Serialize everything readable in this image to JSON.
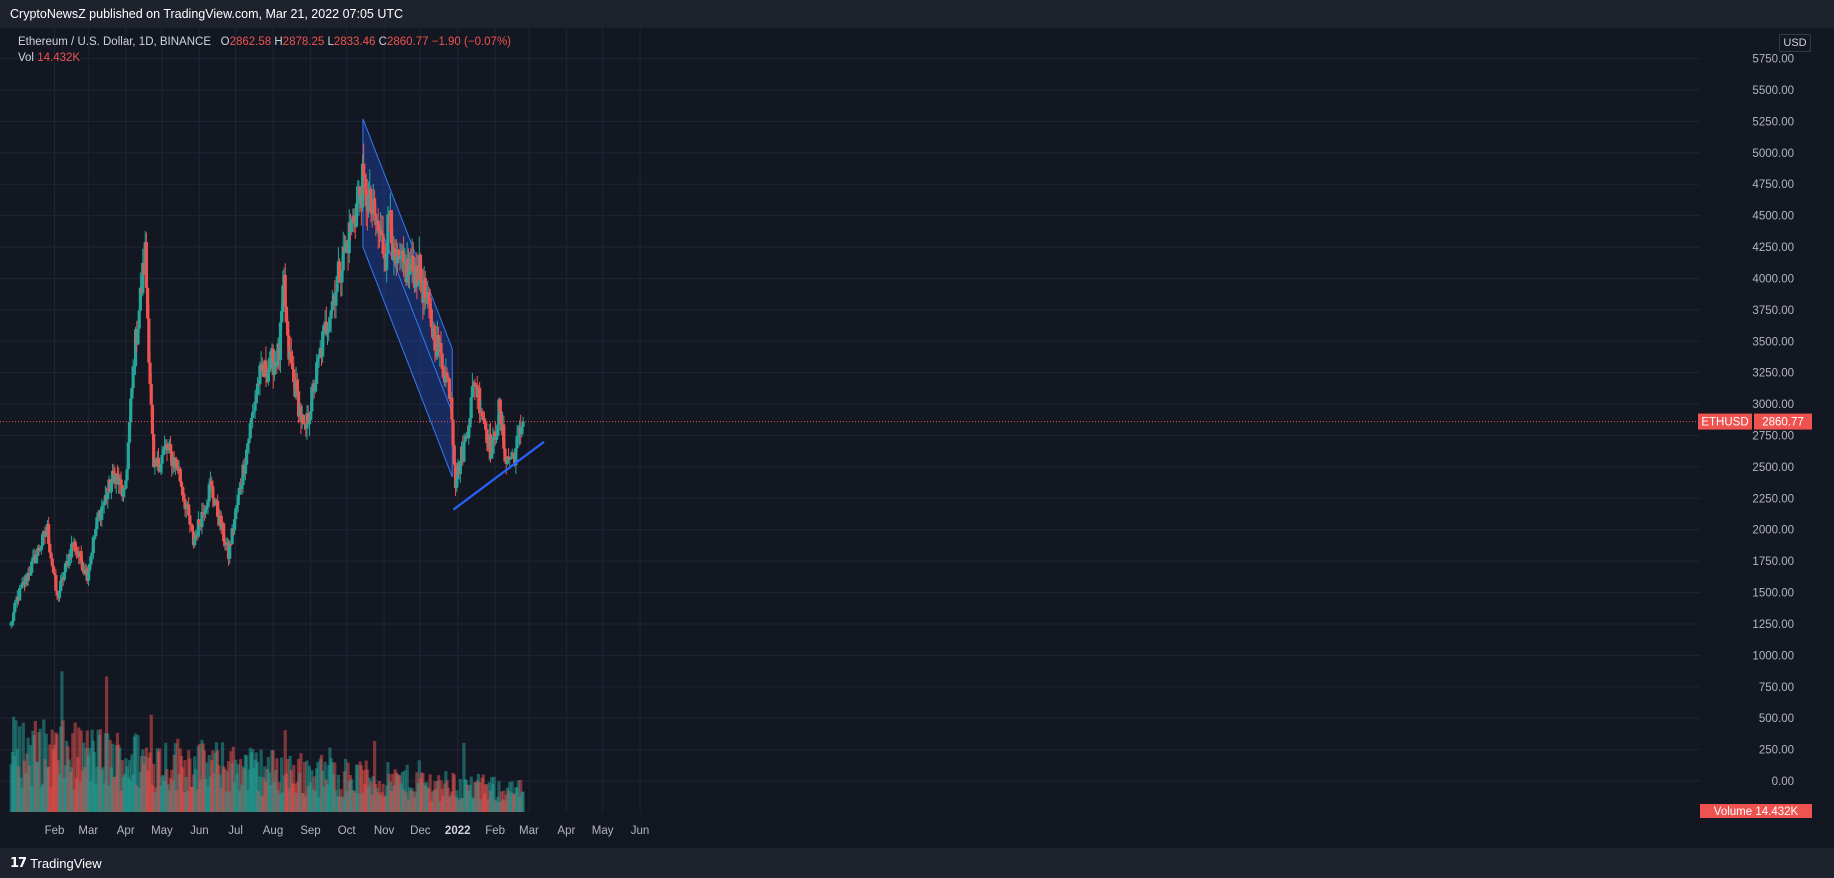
{
  "header": {
    "published": "CryptoNewsZ published on TradingView.com, Mar 21, 2022 07:05 UTC"
  },
  "legend": {
    "symbol": "Ethereum / U.S. Dollar, 1D, BINANCE",
    "o_label": "O",
    "o_value": "2862.58",
    "h_label": "H",
    "h_value": "2878.25",
    "l_label": "L",
    "l_value": "2833.46",
    "c_label": "C",
    "c_value": "2860.77",
    "change": "−1.90 (−0.07%)",
    "vol_label": "Vol",
    "vol_value": "14.432K"
  },
  "price_axis": {
    "currency": "USD",
    "ticks": [
      "5750.00",
      "5500.00",
      "5250.00",
      "5000.00",
      "4750.00",
      "4500.00",
      "4250.00",
      "4000.00",
      "3750.00",
      "3500.00",
      "3250.00",
      "3000.00",
      "2750.00",
      "2500.00",
      "2250.00",
      "2000.00",
      "1750.00",
      "1500.00",
      "1250.00",
      "1000.00",
      "750.00",
      "500.00",
      "250.00",
      "0.00"
    ],
    "last_symbol": "ETHUSD",
    "last_price": "2860.77",
    "volume_label": "Volume",
    "volume_value": "14.432K"
  },
  "time_axis": {
    "labels": [
      "Feb",
      "Mar",
      "Apr",
      "May",
      "Jun",
      "Jul",
      "Aug",
      "Sep",
      "Oct",
      "Nov",
      "Dec",
      "2022",
      "Feb",
      "Mar",
      "Apr",
      "May",
      "Jun"
    ]
  },
  "footer": {
    "logo_text": "TradingView",
    "logo_mark": "17"
  },
  "colors": {
    "background": "#131722",
    "up": "#26a69a",
    "down": "#ef5350",
    "grid": "#1f2433",
    "channel_fill": "#2962ff",
    "channel_line": "#3179f5",
    "trend_line": "#2962ff"
  },
  "chart_data": {
    "type": "candlestick",
    "series_name": "ETHUSD",
    "x_range": [
      "2021-01-20",
      "2022-06-01"
    ],
    "ylim": [
      0,
      5750
    ],
    "grid": true,
    "anchors": [
      {
        "x": "2021-01-21",
        "y": 1250
      },
      {
        "x": "2021-01-26",
        "y": 1450
      },
      {
        "x": "2021-02-10",
        "y": 1780
      },
      {
        "x": "2021-02-20",
        "y": 2000
      },
      {
        "x": "2021-02-28",
        "y": 1450
      },
      {
        "x": "2021-03-13",
        "y": 1900
      },
      {
        "x": "2021-03-25",
        "y": 1650
      },
      {
        "x": "2021-04-03",
        "y": 2100
      },
      {
        "x": "2021-04-17",
        "y": 2450
      },
      {
        "x": "2021-04-25",
        "y": 2250
      },
      {
        "x": "2021-05-03",
        "y": 3400
      },
      {
        "x": "2021-05-12",
        "y": 4200
      },
      {
        "x": "2021-05-19",
        "y": 2450
      },
      {
        "x": "2021-05-29",
        "y": 2650
      },
      {
        "x": "2021-06-08",
        "y": 2500
      },
      {
        "x": "2021-06-21",
        "y": 1900
      },
      {
        "x": "2021-07-05",
        "y": 2350
      },
      {
        "x": "2021-07-20",
        "y": 1800
      },
      {
        "x": "2021-08-14",
        "y": 3200
      },
      {
        "x": "2021-08-31",
        "y": 3400
      },
      {
        "x": "2021-09-04",
        "y": 3950
      },
      {
        "x": "2021-09-07",
        "y": 3450
      },
      {
        "x": "2021-09-21",
        "y": 2750
      },
      {
        "x": "2021-10-07",
        "y": 3550
      },
      {
        "x": "2021-10-21",
        "y": 4100
      },
      {
        "x": "2021-11-08",
        "y": 4750
      },
      {
        "x": "2021-11-27",
        "y": 4200
      },
      {
        "x": "2021-12-01",
        "y": 4600
      },
      {
        "x": "2021-12-04",
        "y": 4100
      },
      {
        "x": "2021-12-25",
        "y": 4050
      },
      {
        "x": "2022-01-05",
        "y": 3600
      },
      {
        "x": "2022-01-20",
        "y": 3100
      },
      {
        "x": "2022-01-24",
        "y": 2400
      },
      {
        "x": "2022-02-01",
        "y": 2700
      },
      {
        "x": "2022-02-09",
        "y": 3200
      },
      {
        "x": "2022-02-23",
        "y": 2600
      },
      {
        "x": "2022-03-01",
        "y": 2950
      },
      {
        "x": "2022-03-07",
        "y": 2550
      },
      {
        "x": "2022-03-14",
        "y": 2600
      },
      {
        "x": "2022-03-21",
        "y": 2860
      }
    ],
    "channel": {
      "upper": [
        {
          "x": "2021-11-10",
          "y": 5270
        },
        {
          "x": "2022-01-23",
          "y": 3440
        }
      ],
      "lower": [
        {
          "x": "2021-11-10",
          "y": 4250
        },
        {
          "x": "2022-01-23",
          "y": 2420
        }
      ]
    },
    "support_line": [
      {
        "x": "2022-01-24",
        "y": 2160
      },
      {
        "x": "2022-04-09",
        "y": 2700
      }
    ],
    "last_price": 2860.77
  }
}
